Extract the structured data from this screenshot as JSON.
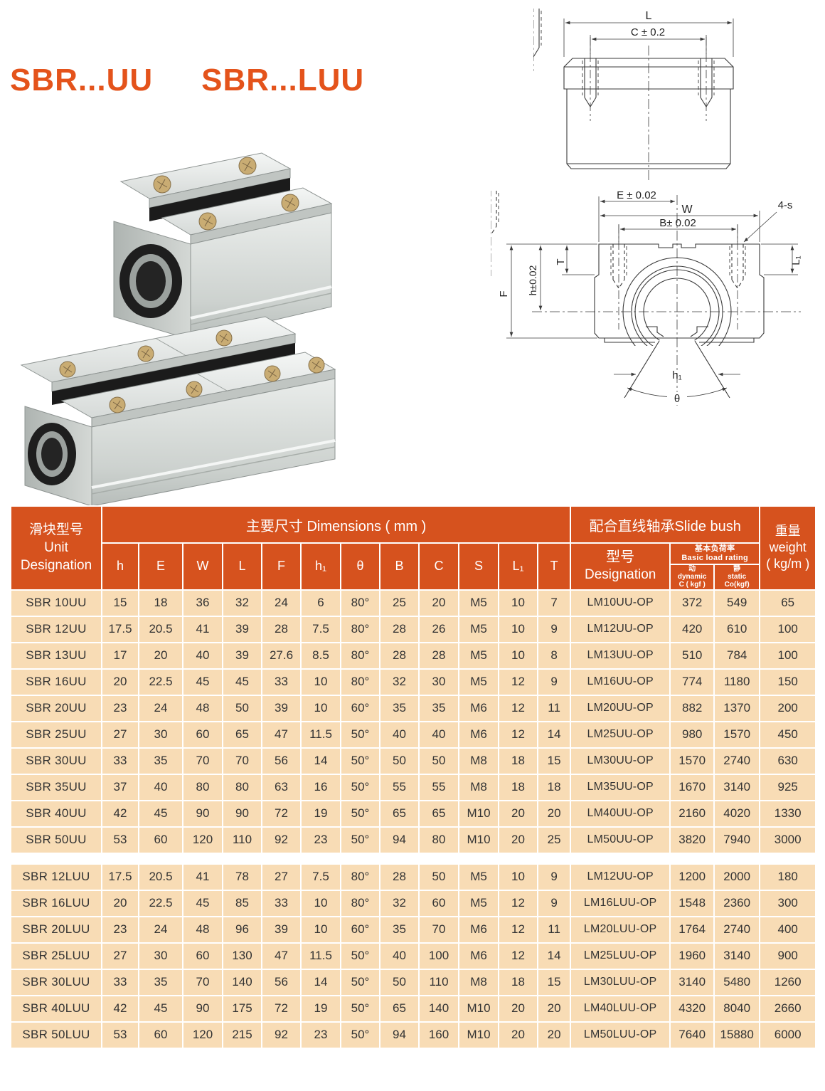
{
  "title": {
    "part1": "SBR...UU",
    "part2": "SBR...LUU"
  },
  "colors": {
    "accent": "#d6521e",
    "title": "#e4531b",
    "row_bg": "#f8dcb5"
  },
  "drawings": {
    "side_view": {
      "dim_l": "L",
      "dim_c": "C ± 0.2"
    },
    "front_view": {
      "dim_e": "E ± 0.02",
      "dim_w": "W",
      "dim_b": "B± 0.02",
      "dim_4s": "4-s",
      "dim_t": "T",
      "dim_h": "h±0.02",
      "dim_f": "F",
      "dim_l1": "L₁",
      "dim_h1": "h₁",
      "dim_theta": "θ"
    }
  },
  "table": {
    "header": {
      "unit_cn": "滑块型号",
      "unit_en1": "Unit",
      "unit_en2": "Designation",
      "dims": "主要尺寸  Dimensions ( mm )",
      "dim_cols": [
        "h",
        "E",
        "W",
        "L",
        "F",
        "h₁",
        "θ",
        "B",
        "C",
        "S",
        "L₁",
        "T"
      ],
      "slide_bush": "配合直线轴承Slide bush",
      "designation_cn": "型号",
      "designation_en": "Designation",
      "load_cn": "基本负荷率",
      "load_en": "Basic load rating",
      "dynamic_cn": "动",
      "dynamic_en": "dynamic",
      "dynamic_unit": "C ( kgf )",
      "static_cn": "静",
      "static_en": "static",
      "static_unit": "Co(kgf)",
      "weight_cn": "重量",
      "weight_en": "weight",
      "weight_unit": "( kg/m )"
    },
    "uu_rows": [
      [
        "SBR 10UU",
        "15",
        "18",
        "36",
        "32",
        "24",
        "6",
        "80°",
        "25",
        "20",
        "M5",
        "10",
        "7",
        "LM10UU-OP",
        "372",
        "549",
        "65"
      ],
      [
        "SBR 12UU",
        "17.5",
        "20.5",
        "41",
        "39",
        "28",
        "7.5",
        "80°",
        "28",
        "26",
        "M5",
        "10",
        "9",
        "LM12UU-OP",
        "420",
        "610",
        "100"
      ],
      [
        "SBR 13UU",
        "17",
        "20",
        "40",
        "39",
        "27.6",
        "8.5",
        "80°",
        "28",
        "28",
        "M5",
        "10",
        "8",
        "LM13UU-OP",
        "510",
        "784",
        "100"
      ],
      [
        "SBR 16UU",
        "20",
        "22.5",
        "45",
        "45",
        "33",
        "10",
        "80°",
        "32",
        "30",
        "M5",
        "12",
        "9",
        "LM16UU-OP",
        "774",
        "1180",
        "150"
      ],
      [
        "SBR 20UU",
        "23",
        "24",
        "48",
        "50",
        "39",
        "10",
        "60°",
        "35",
        "35",
        "M6",
        "12",
        "11",
        "LM20UU-OP",
        "882",
        "1370",
        "200"
      ],
      [
        "SBR 25UU",
        "27",
        "30",
        "60",
        "65",
        "47",
        "11.5",
        "50°",
        "40",
        "40",
        "M6",
        "12",
        "14",
        "LM25UU-OP",
        "980",
        "1570",
        "450"
      ],
      [
        "SBR 30UU",
        "33",
        "35",
        "70",
        "70",
        "56",
        "14",
        "50°",
        "50",
        "50",
        "M8",
        "18",
        "15",
        "LM30UU-OP",
        "1570",
        "2740",
        "630"
      ],
      [
        "SBR 35UU",
        "37",
        "40",
        "80",
        "80",
        "63",
        "16",
        "50°",
        "55",
        "55",
        "M8",
        "18",
        "18",
        "LM35UU-OP",
        "1670",
        "3140",
        "925"
      ],
      [
        "SBR 40UU",
        "42",
        "45",
        "90",
        "90",
        "72",
        "19",
        "50°",
        "65",
        "65",
        "M10",
        "20",
        "20",
        "LM40UU-OP",
        "2160",
        "4020",
        "1330"
      ],
      [
        "SBR 50UU",
        "53",
        "60",
        "120",
        "110",
        "92",
        "23",
        "50°",
        "94",
        "80",
        "M10",
        "20",
        "25",
        "LM50UU-OP",
        "3820",
        "7940",
        "3000"
      ]
    ],
    "luu_rows": [
      [
        "SBR 12LUU",
        "17.5",
        "20.5",
        "41",
        "78",
        "27",
        "7.5",
        "80°",
        "28",
        "50",
        "M5",
        "10",
        "9",
        "LM12UU-OP",
        "1200",
        "2000",
        "180"
      ],
      [
        "SBR 16LUU",
        "20",
        "22.5",
        "45",
        "85",
        "33",
        "10",
        "80°",
        "32",
        "60",
        "M5",
        "12",
        "9",
        "LM16LUU-OP",
        "1548",
        "2360",
        "300"
      ],
      [
        "SBR 20LUU",
        "23",
        "24",
        "48",
        "96",
        "39",
        "10",
        "60°",
        "35",
        "70",
        "M6",
        "12",
        "11",
        "LM20LUU-OP",
        "1764",
        "2740",
        "400"
      ],
      [
        "SBR 25LUU",
        "27",
        "30",
        "60",
        "130",
        "47",
        "11.5",
        "50°",
        "40",
        "100",
        "M6",
        "12",
        "14",
        "LM25LUU-OP",
        "1960",
        "3140",
        "900"
      ],
      [
        "SBR 30LUU",
        "33",
        "35",
        "70",
        "140",
        "56",
        "14",
        "50°",
        "50",
        "110",
        "M8",
        "18",
        "15",
        "LM30LUU-OP",
        "3140",
        "5480",
        "1260"
      ],
      [
        "SBR 40LUU",
        "42",
        "45",
        "90",
        "175",
        "72",
        "19",
        "50°",
        "65",
        "140",
        "M10",
        "20",
        "20",
        "LM40LUU-OP",
        "4320",
        "8040",
        "2660"
      ],
      [
        "SBR 50LUU",
        "53",
        "60",
        "120",
        "215",
        "92",
        "23",
        "50°",
        "94",
        "160",
        "M10",
        "20",
        "20",
        "LM50LUU-OP",
        "7640",
        "15880",
        "6000"
      ]
    ]
  }
}
